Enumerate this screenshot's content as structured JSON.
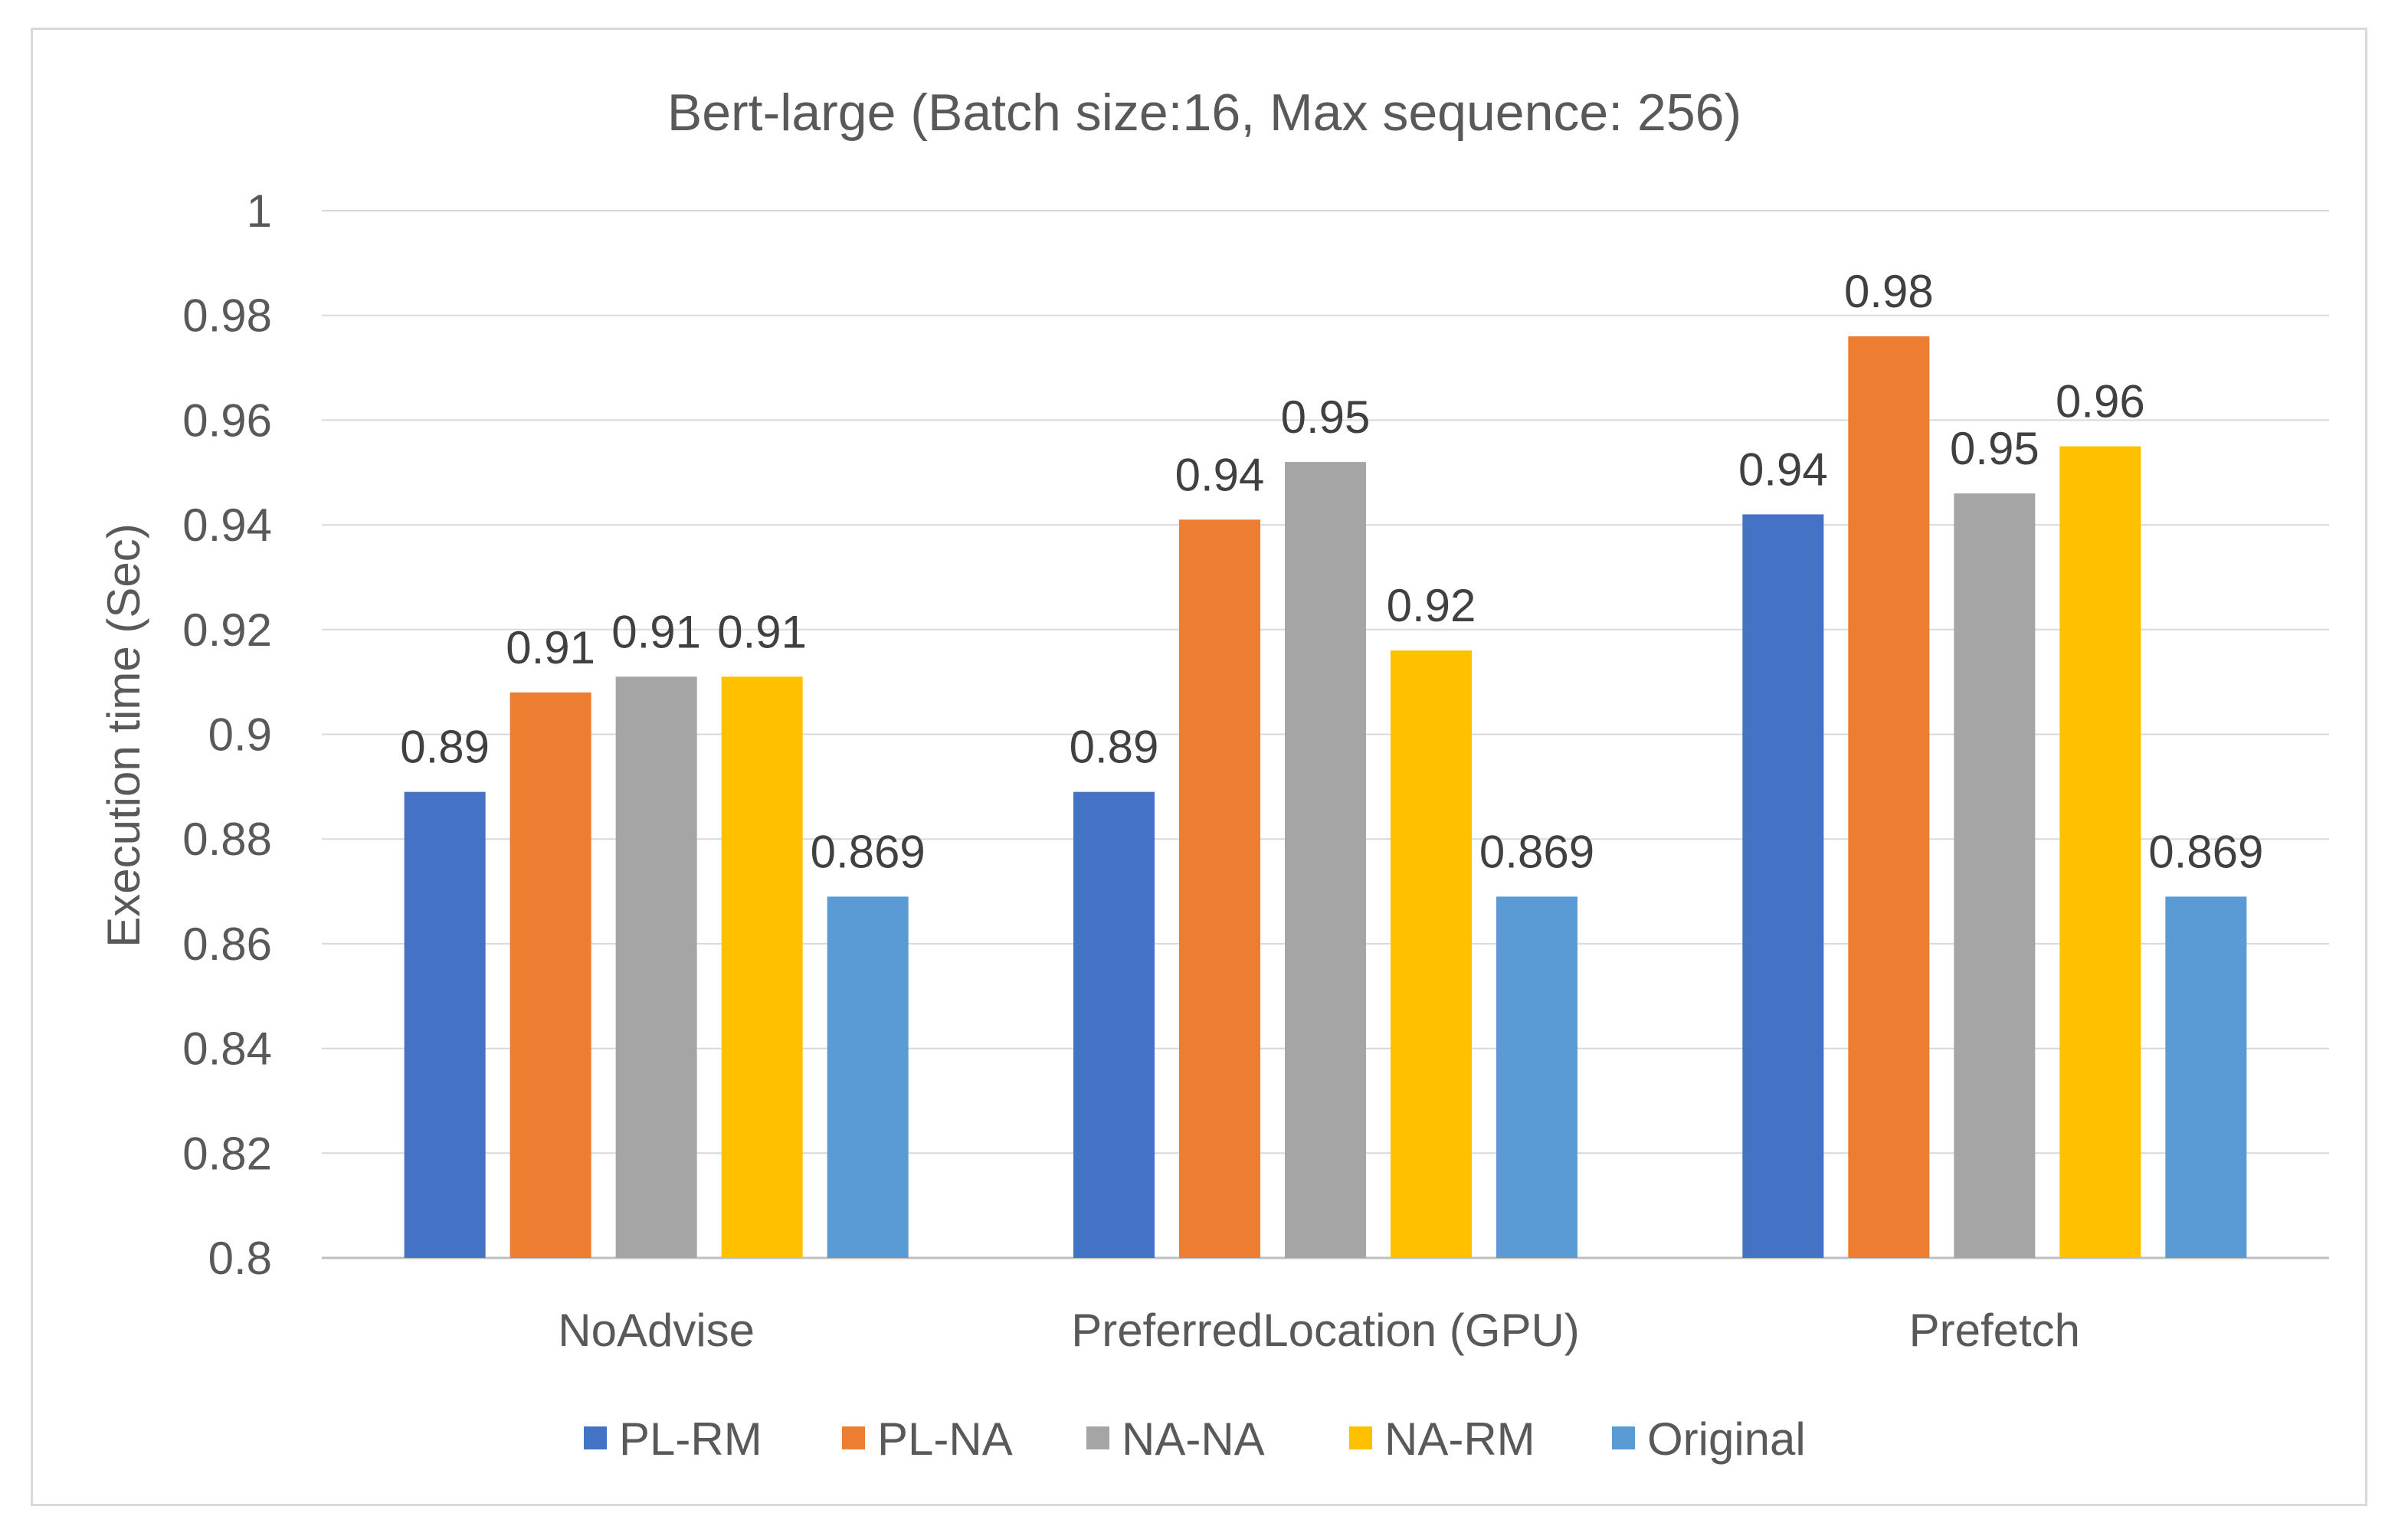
{
  "chart_data": {
    "type": "bar",
    "title": "Bert-large (Batch size:16, Max sequence: 256)",
    "xlabel": "",
    "ylabel": "Execution time (Sec)",
    "ylim": [
      0.8,
      1.0
    ],
    "yticks": [
      "0.8",
      "0.82",
      "0.84",
      "0.86",
      "0.88",
      "0.9",
      "0.92",
      "0.94",
      "0.96",
      "0.98",
      "1"
    ],
    "grid": true,
    "legend_position": "bottom",
    "categories": [
      "NoAdvise",
      "PreferredLocation (GPU)",
      "Prefetch"
    ],
    "series": [
      {
        "name": "PL-RM",
        "color": "#4472C4",
        "values": [
          0.889,
          0.889,
          0.942
        ],
        "labels": [
          "0.89",
          "0.89",
          "0.94"
        ]
      },
      {
        "name": "PL-NA",
        "color": "#ED7D31",
        "values": [
          0.908,
          0.941,
          0.976
        ],
        "labels": [
          "0.91",
          "0.94",
          "0.98"
        ]
      },
      {
        "name": "NA-NA",
        "color": "#A5A5A5",
        "values": [
          0.911,
          0.952,
          0.946
        ],
        "labels": [
          "0.91",
          "0.95",
          "0.95"
        ]
      },
      {
        "name": "NA-RM",
        "color": "#FFC000",
        "values": [
          0.911,
          0.916,
          0.955
        ],
        "labels": [
          "0.91",
          "0.92",
          "0.96"
        ]
      },
      {
        "name": "Original",
        "color": "#5B9BD5",
        "values": [
          0.869,
          0.869,
          0.869
        ],
        "labels": [
          "0.869",
          "0.869",
          "0.869"
        ]
      }
    ]
  }
}
